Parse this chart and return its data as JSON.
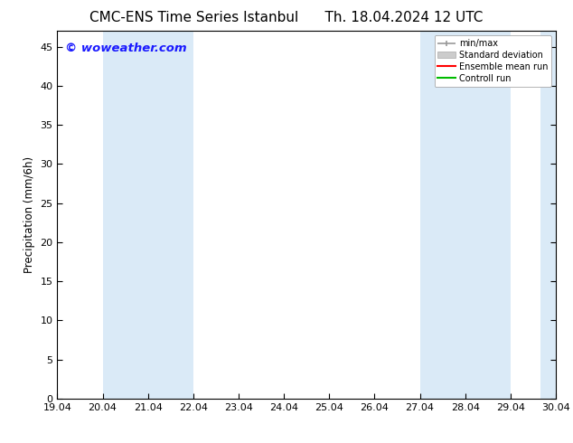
{
  "title_left": "CMC-ENS Time Series Istanbul",
  "title_right": "Th. 18.04.2024 12 UTC",
  "ylabel": "Precipitation (mm/6h)",
  "watermark": "© woweather.com",
  "watermark_color": "#1a1aff",
  "ylim": [
    0,
    47
  ],
  "yticks": [
    0,
    5,
    10,
    15,
    20,
    25,
    30,
    35,
    40,
    45
  ],
  "xtick_labels": [
    "19.04",
    "20.04",
    "21.04",
    "22.04",
    "23.04",
    "24.04",
    "25.04",
    "26.04",
    "27.04",
    "28.04",
    "29.04",
    "30.04"
  ],
  "xtick_positions": [
    0,
    1,
    2,
    3,
    4,
    5,
    6,
    7,
    8,
    9,
    10,
    11
  ],
  "xlim": [
    0,
    11
  ],
  "shade_bands": [
    {
      "xmin": 1,
      "xmax": 3,
      "color": "#daeaf7"
    },
    {
      "xmin": 8,
      "xmax": 10,
      "color": "#daeaf7"
    },
    {
      "xmin": 10.67,
      "xmax": 11.0,
      "color": "#daeaf7"
    }
  ],
  "legend_entries": [
    {
      "label": "min/max",
      "color": "#999999",
      "lw": 1.2
    },
    {
      "label": "Standard deviation",
      "color": "#cccccc",
      "lw": 5
    },
    {
      "label": "Ensemble mean run",
      "color": "#ff0000",
      "lw": 1.5
    },
    {
      "label": "Controll run",
      "color": "#00bb00",
      "lw": 1.5
    }
  ],
  "bg_color": "#ffffff",
  "title_fontsize": 11,
  "axis_fontsize": 8.5,
  "tick_fontsize": 8,
  "watermark_fontsize": 9.5
}
